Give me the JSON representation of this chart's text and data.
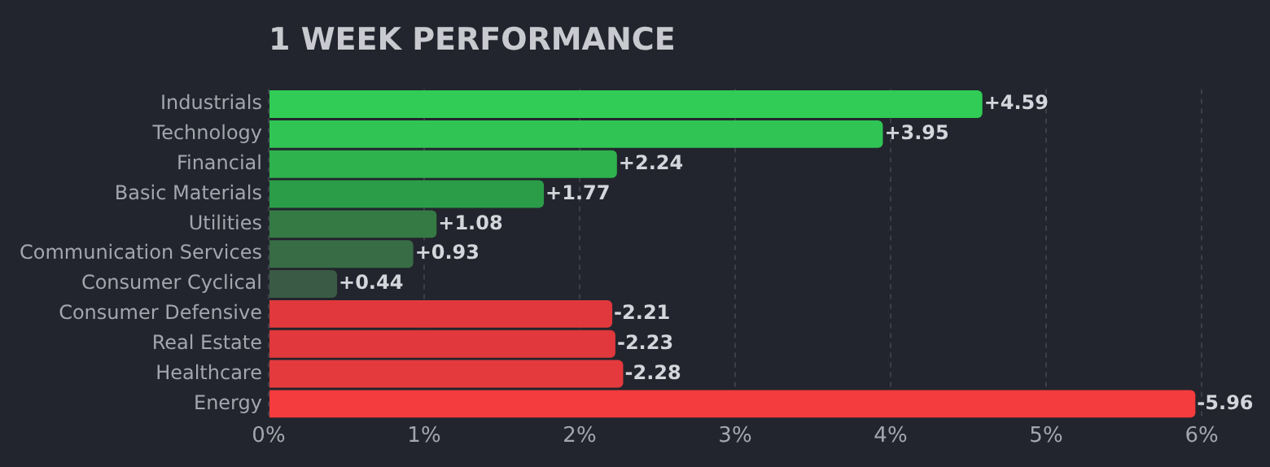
{
  "chart_data": {
    "type": "bar",
    "orientation": "horizontal",
    "title": "1 WEEK PERFORMANCE",
    "categories": [
      "Industrials",
      "Technology",
      "Financial",
      "Basic Materials",
      "Utilities",
      "Communication Services",
      "Consumer Cyclical",
      "Consumer Defensive",
      "Real Estate",
      "Healthcare",
      "Energy"
    ],
    "values": [
      4.59,
      3.95,
      2.24,
      1.77,
      1.08,
      0.93,
      0.44,
      -2.21,
      -2.23,
      -2.28,
      -5.96
    ],
    "base": [
      0,
      0,
      0,
      0,
      0,
      0,
      0,
      2.21,
      2.23,
      2.28,
      5.96
    ],
    "value_labels": [
      "+4.59",
      "+3.95",
      "+2.24",
      "+1.77",
      "+1.08",
      "+0.93",
      "+0.44",
      "-2.21",
      "-2.23",
      "-2.28",
      "-5.96"
    ],
    "colors": [
      "#30cc55",
      "#30c454",
      "#2eb24e",
      "#2b9c48",
      "#357a45",
      "#386c45",
      "#3b5a45",
      "#e0383c",
      "#e0383c",
      "#e53a3d",
      "#f43b3d"
    ],
    "xlim": [
      0,
      6
    ],
    "xticks": [
      {
        "value": 0,
        "label": "0%"
      },
      {
        "value": 1,
        "label": "1%"
      },
      {
        "value": 2,
        "label": "2%"
      },
      {
        "value": 3,
        "label": "3%"
      },
      {
        "value": 4,
        "label": "4%"
      },
      {
        "value": 5,
        "label": "5%"
      },
      {
        "value": 6,
        "label": "6%"
      }
    ],
    "grid": "x",
    "legend": false
  }
}
